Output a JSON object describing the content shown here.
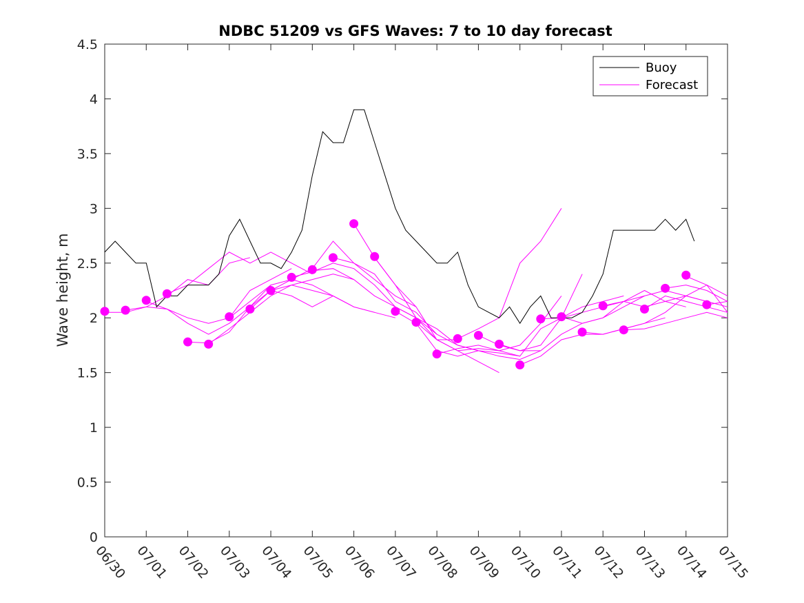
{
  "chart_data": {
    "type": "line",
    "title": "NDBC 51209 vs GFS Waves: 7 to 10 day forecast",
    "xlabel": "",
    "ylabel": "Wave height, m",
    "xlim": [
      0,
      15
    ],
    "ylim": [
      0,
      4.5
    ],
    "x_ticks": [
      "06/30",
      "07/01",
      "07/02",
      "07/03",
      "07/04",
      "07/05",
      "07/06",
      "07/07",
      "07/08",
      "07/09",
      "07/10",
      "07/11",
      "07/12",
      "07/13",
      "07/14",
      "07/15"
    ],
    "y_ticks": [
      "0",
      "0.5",
      "1",
      "1.5",
      "2",
      "2.5",
      "3",
      "3.5",
      "4",
      "4.5"
    ],
    "grid": false,
    "legend": {
      "position": "top-right",
      "entries": [
        {
          "label": "Buoy",
          "color": "#000000"
        },
        {
          "label": "Forecast",
          "color": "#ff00ff"
        }
      ]
    },
    "buoy": {
      "name": "Buoy",
      "color": "#000000",
      "x": [
        0.0,
        0.25,
        0.5,
        0.75,
        1.0,
        1.25,
        1.5,
        1.75,
        2.0,
        2.25,
        2.5,
        2.75,
        3.0,
        3.25,
        3.5,
        3.75,
        4.0,
        4.25,
        4.5,
        4.75,
        5.0,
        5.25,
        5.5,
        5.75,
        6.0,
        6.25,
        6.5,
        6.75,
        7.0,
        7.25,
        7.5,
        7.75,
        8.0,
        8.25,
        8.5,
        8.75,
        9.0,
        9.25,
        9.5,
        9.75,
        10.0,
        10.25,
        10.5,
        10.75,
        11.0,
        11.25,
        11.5,
        11.75,
        12.0,
        12.25,
        12.5,
        12.75,
        13.0,
        13.25,
        13.5,
        13.75,
        14.0,
        14.2
      ],
      "y": [
        2.6,
        2.7,
        2.6,
        2.5,
        2.5,
        2.1,
        2.2,
        2.2,
        2.3,
        2.3,
        2.3,
        2.4,
        2.75,
        2.9,
        2.7,
        2.5,
        2.5,
        2.45,
        2.6,
        2.8,
        3.3,
        3.7,
        3.6,
        3.6,
        3.9,
        3.9,
        3.6,
        3.3,
        3.0,
        2.8,
        2.7,
        2.6,
        2.5,
        2.5,
        2.6,
        2.3,
        2.1,
        2.05,
        2.0,
        2.1,
        1.95,
        2.1,
        2.2,
        2.0,
        2.0,
        2.0,
        2.05,
        2.2,
        2.4,
        2.8,
        2.8,
        2.8,
        2.8,
        2.8,
        2.9,
        2.8,
        2.9,
        2.7
      ]
    },
    "forecast_runs": [
      {
        "name": "",
        "color": "#ff00ff",
        "x": [
          0.0,
          0.5,
          1.0,
          1.5,
          2.0,
          2.5,
          3.0,
          3.5
        ],
        "y": [
          2.05,
          2.05,
          2.1,
          2.2,
          2.35,
          2.3,
          2.5,
          2.55
        ]
      },
      {
        "name": "",
        "color": "#ff00ff",
        "x": [
          0.5,
          1.0,
          1.5,
          2.0,
          2.5,
          3.0,
          3.5,
          4.0
        ],
        "y": [
          2.07,
          2.1,
          2.08,
          1.95,
          1.85,
          1.95,
          2.1,
          2.3
        ]
      },
      {
        "name": "",
        "color": "#ff00ff",
        "x": [
          1.0,
          1.5,
          2.0,
          2.5,
          3.0,
          3.5,
          4.0,
          4.5
        ],
        "y": [
          2.15,
          2.08,
          2.0,
          1.95,
          2.0,
          2.25,
          2.35,
          2.45
        ]
      },
      {
        "name": "",
        "color": "#ff00ff",
        "x": [
          1.5,
          2.0,
          2.5,
          3.0,
          3.5,
          4.0,
          4.5,
          5.0
        ],
        "y": [
          2.22,
          2.3,
          2.45,
          2.6,
          2.5,
          2.6,
          2.5,
          2.4
        ]
      },
      {
        "name": "",
        "color": "#ff00ff",
        "x": [
          2.0,
          2.5,
          3.0,
          3.5,
          4.0,
          4.5,
          5.0,
          5.5
        ],
        "y": [
          1.78,
          1.77,
          1.87,
          2.1,
          2.25,
          2.2,
          2.1,
          2.2
        ]
      },
      {
        "name": "",
        "color": "#ff00ff",
        "x": [
          2.5,
          3.0,
          3.5,
          4.0,
          4.5,
          5.0,
          5.5,
          6.0
        ],
        "y": [
          1.76,
          1.9,
          2.05,
          2.2,
          2.3,
          2.35,
          2.4,
          2.35
        ]
      },
      {
        "name": "",
        "color": "#ff00ff",
        "x": [
          3.0,
          3.5,
          4.0,
          4.5,
          5.0,
          5.5,
          6.0,
          6.5
        ],
        "y": [
          2.0,
          2.15,
          2.3,
          2.35,
          2.3,
          2.2,
          2.1,
          2.05
        ]
      },
      {
        "name": "",
        "color": "#ff00ff",
        "x": [
          3.5,
          4.0,
          4.5,
          5.0,
          5.5,
          6.0,
          6.5,
          7.0
        ],
        "y": [
          2.08,
          2.25,
          2.3,
          2.25,
          2.2,
          2.1,
          2.05,
          2.0
        ]
      },
      {
        "name": "",
        "color": "#ff00ff",
        "x": [
          4.0,
          4.5,
          5.0,
          5.5,
          6.0,
          6.5,
          7.0,
          7.5
        ],
        "y": [
          2.25,
          2.35,
          2.45,
          2.7,
          2.5,
          2.35,
          2.2,
          2.1
        ]
      },
      {
        "name": "",
        "color": "#ff00ff",
        "x": [
          4.5,
          5.0,
          5.5,
          6.0,
          6.5,
          7.0,
          7.5,
          8.0
        ],
        "y": [
          2.37,
          2.42,
          2.5,
          2.45,
          2.3,
          2.1,
          2.0,
          1.85
        ]
      },
      {
        "name": "",
        "color": "#ff00ff",
        "x": [
          5.0,
          5.5,
          6.0,
          6.5,
          7.0,
          7.5,
          8.0,
          8.5
        ],
        "y": [
          2.43,
          2.45,
          2.35,
          2.2,
          2.1,
          2.0,
          1.8,
          1.8
        ]
      },
      {
        "name": "",
        "color": "#ff00ff",
        "x": [
          5.5,
          6.0,
          6.5,
          7.0,
          7.5,
          8.0,
          8.5,
          9.0
        ],
        "y": [
          2.55,
          2.5,
          2.4,
          2.15,
          2.05,
          1.85,
          1.75,
          1.7
        ]
      },
      {
        "name": "",
        "color": "#ff00ff",
        "x": [
          6.0,
          6.5,
          7.0,
          7.5,
          8.0,
          8.5,
          9.0,
          9.5
        ],
        "y": [
          2.86,
          2.55,
          2.3,
          2.1,
          1.8,
          1.7,
          1.6,
          1.5
        ]
      },
      {
        "name": "",
        "color": "#ff00ff",
        "x": [
          6.5,
          7.0,
          7.5,
          8.0,
          8.5,
          9.0,
          9.5,
          10.0
        ],
        "y": [
          2.55,
          2.3,
          2.0,
          1.9,
          1.75,
          1.7,
          1.68,
          1.65
        ]
      },
      {
        "name": "",
        "color": "#ff00ff",
        "x": [
          7.0,
          7.5,
          8.0,
          8.5,
          9.0,
          9.5,
          10.0,
          10.5
        ],
        "y": [
          2.06,
          1.95,
          1.7,
          1.65,
          1.7,
          1.65,
          1.62,
          1.7
        ]
      },
      {
        "name": "",
        "color": "#ff00ff",
        "x": [
          7.5,
          8.0,
          8.5,
          9.0,
          9.5,
          10.0,
          10.5,
          11.0
        ],
        "y": [
          1.96,
          1.8,
          1.7,
          1.72,
          1.7,
          1.75,
          1.95,
          2.2
        ]
      },
      {
        "name": "",
        "color": "#ff00ff",
        "x": [
          8.0,
          8.5,
          9.0,
          9.5,
          10.0,
          10.5,
          11.0,
          11.5
        ],
        "y": [
          1.67,
          1.72,
          1.75,
          1.7,
          1.65,
          1.9,
          2.0,
          2.4
        ]
      },
      {
        "name": "",
        "color": "#ff00ff",
        "x": [
          8.5,
          9.0,
          9.5,
          10.0,
          10.5,
          11.0
        ],
        "y": [
          1.81,
          1.9,
          2.0,
          2.5,
          2.7,
          3.0
        ]
      },
      {
        "name": "",
        "color": "#ff00ff",
        "x": [
          9.0,
          9.5,
          10.0,
          10.5,
          11.0,
          11.5,
          12.0,
          12.5
        ],
        "y": [
          1.84,
          1.75,
          1.7,
          1.75,
          2.0,
          2.1,
          2.15,
          2.2
        ]
      },
      {
        "name": "",
        "color": "#ff00ff",
        "x": [
          9.5,
          10.0,
          10.5,
          11.0,
          11.5,
          12.0,
          12.5,
          13.0
        ],
        "y": [
          1.76,
          1.7,
          1.7,
          1.85,
          1.95,
          2.0,
          2.15,
          2.2
        ]
      },
      {
        "name": "",
        "color": "#ff00ff",
        "x": [
          10.0,
          10.5,
          11.0,
          11.5,
          12.0,
          12.5,
          13.0,
          13.5
        ],
        "y": [
          1.57,
          1.65,
          1.8,
          1.85,
          1.85,
          1.9,
          1.95,
          2.0
        ]
      },
      {
        "name": "",
        "color": "#ff00ff",
        "x": [
          10.5,
          11.0,
          11.5,
          12.0,
          12.5,
          13.0,
          13.5,
          14.0
        ],
        "y": [
          1.99,
          2.0,
          2.05,
          2.1,
          2.15,
          2.25,
          2.15,
          2.1
        ]
      },
      {
        "name": "",
        "color": "#ff00ff",
        "x": [
          11.0,
          11.5,
          12.0,
          12.5,
          13.0,
          13.5,
          14.0,
          14.5
        ],
        "y": [
          2.01,
          1.95,
          2.0,
          2.1,
          2.2,
          2.25,
          2.2,
          2.15
        ]
      },
      {
        "name": "",
        "color": "#ff00ff",
        "x": [
          11.5,
          12.0,
          12.5,
          13.0,
          13.5,
          14.0,
          14.5,
          15.0
        ],
        "y": [
          1.87,
          1.85,
          1.9,
          1.95,
          2.05,
          2.2,
          2.3,
          2.05
        ]
      },
      {
        "name": "",
        "color": "#ff00ff",
        "x": [
          12.0,
          12.5,
          13.0,
          13.5,
          14.0,
          14.5,
          15.0
        ],
        "y": [
          2.11,
          2.15,
          2.1,
          2.15,
          2.2,
          2.15,
          2.1
        ]
      },
      {
        "name": "",
        "color": "#ff00ff",
        "x": [
          12.5,
          13.0,
          13.5,
          14.0,
          14.5,
          15.0
        ],
        "y": [
          1.89,
          1.9,
          1.95,
          2.0,
          2.05,
          2.0
        ]
      },
      {
        "name": "",
        "color": "#ff00ff",
        "x": [
          13.0,
          13.5,
          14.0,
          14.5,
          15.0
        ],
        "y": [
          2.08,
          2.2,
          2.15,
          2.1,
          2.05
        ]
      },
      {
        "name": "",
        "color": "#ff00ff",
        "x": [
          13.5,
          14.0,
          14.5,
          15.0
        ],
        "y": [
          2.27,
          2.3,
          2.25,
          2.15
        ]
      },
      {
        "name": "",
        "color": "#ff00ff",
        "x": [
          14.0,
          14.5,
          15.0
        ],
        "y": [
          2.38,
          2.3,
          2.2
        ]
      },
      {
        "name": "",
        "color": "#ff00ff",
        "x": [
          14.5,
          15.0
        ],
        "y": [
          2.12,
          2.15
        ]
      }
    ],
    "forecast_points": {
      "name": "Forecast",
      "color": "#ff00ff",
      "x": [
        0.0,
        0.5,
        1.0,
        1.5,
        2.0,
        2.5,
        3.0,
        3.5,
        4.0,
        4.5,
        5.0,
        5.5,
        6.0,
        6.5,
        7.0,
        7.5,
        8.0,
        8.5,
        9.0,
        9.5,
        10.0,
        10.5,
        11.0,
        11.5,
        12.0,
        12.5,
        13.0,
        13.5,
        14.0,
        14.5
      ],
      "y": [
        2.06,
        2.07,
        2.16,
        2.22,
        1.78,
        1.76,
        2.01,
        2.08,
        2.25,
        2.37,
        2.44,
        2.55,
        2.86,
        2.56,
        2.06,
        1.96,
        1.67,
        1.81,
        1.84,
        1.76,
        1.57,
        1.99,
        2.01,
        1.87,
        2.11,
        1.89,
        2.08,
        2.27,
        2.39,
        2.12
      ]
    }
  }
}
